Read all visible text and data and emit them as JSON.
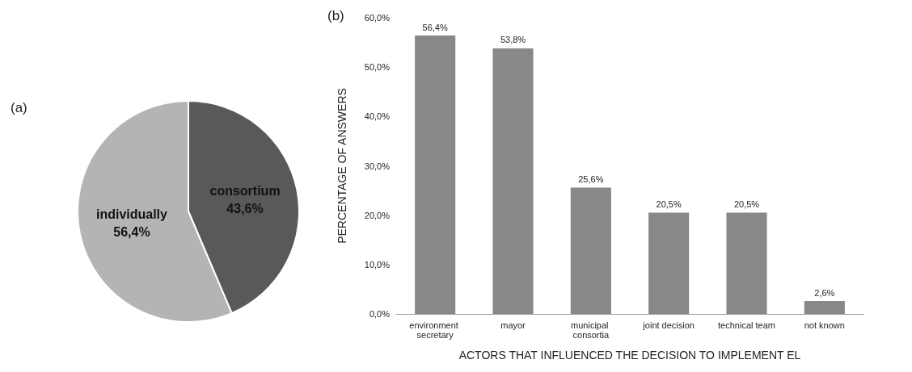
{
  "chart_data": [
    {
      "type": "pie",
      "title": "(a)",
      "categories": [
        "consortium",
        "individually"
      ],
      "values": [
        43.6,
        56.4
      ],
      "colors": [
        "#58595b",
        "#b3b4b6"
      ],
      "value_labels": [
        "43,6%",
        "56,4%"
      ]
    },
    {
      "type": "bar",
      "title": "(b)",
      "xlabel": "ACTORS THAT INFLUENCED THE DECISION TO IMPLEMENT EL",
      "ylabel": "PERCENTAGE OF ANSWERS",
      "categories": [
        "environment secretary",
        "mayor",
        "municipal consortia",
        "joint decision",
        "technical team",
        "not known"
      ],
      "values": [
        56.4,
        53.8,
        25.6,
        20.5,
        20.5,
        2.6
      ],
      "value_labels": [
        "56,4%",
        "53,8%",
        "25,6%",
        "20,5%",
        "20,5%",
        "2,6%"
      ],
      "color": "#87888a",
      "ylim": [
        0,
        60
      ],
      "yticks": [
        {
          "value": 0,
          "label": "0,0%"
        },
        {
          "value": 10,
          "label": "10,0%"
        },
        {
          "value": 20,
          "label": "20,0%"
        },
        {
          "value": 30,
          "label": "30,0%"
        },
        {
          "value": 40,
          "label": "40,0%"
        },
        {
          "value": 50,
          "label": "50,0%"
        },
        {
          "value": 60,
          "label": "60,0%"
        }
      ]
    }
  ]
}
